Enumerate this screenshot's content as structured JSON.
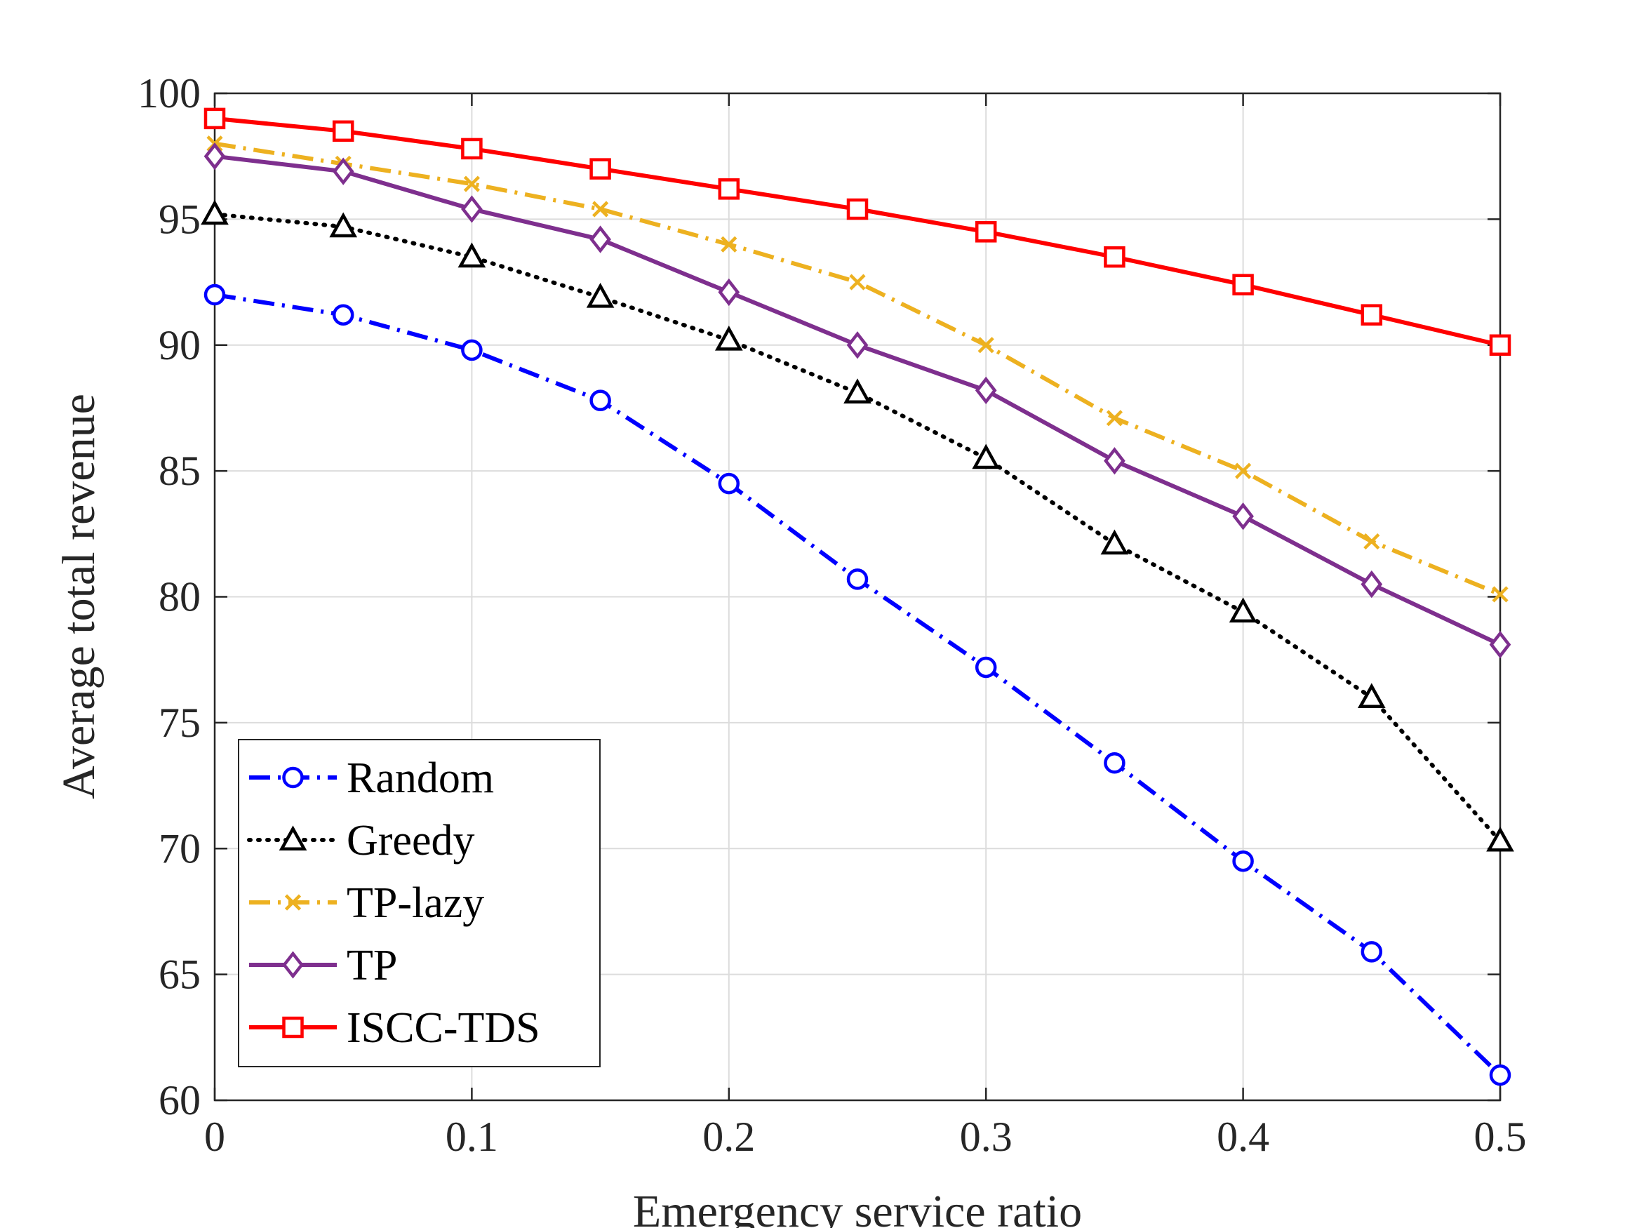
{
  "chart_data": {
    "type": "line",
    "title": "",
    "xlabel": "Emergency service ratio",
    "ylabel": "Average total revenue",
    "xlim": [
      0,
      0.5
    ],
    "ylim": [
      60,
      100
    ],
    "x": [
      0,
      0.05,
      0.1,
      0.15,
      0.2,
      0.25,
      0.3,
      0.35,
      0.4,
      0.45,
      0.5
    ],
    "xticks": [
      0,
      0.1,
      0.2,
      0.3,
      0.4,
      0.5
    ],
    "xtick_labels": [
      "0",
      "0.1",
      "0.2",
      "0.3",
      "0.4",
      "0.5"
    ],
    "yticks": [
      60,
      65,
      70,
      75,
      80,
      85,
      90,
      95,
      100
    ],
    "ytick_labels": [
      "60",
      "65",
      "70",
      "75",
      "80",
      "85",
      "90",
      "95",
      "100"
    ],
    "grid": true,
    "legend_position": "bottom-left",
    "series": [
      {
        "name": "Random",
        "color": "#0000ff",
        "line_style": "dash-dot",
        "marker": "circle",
        "values": [
          92.0,
          91.2,
          89.8,
          87.8,
          84.5,
          80.7,
          77.2,
          73.4,
          69.5,
          65.9,
          61.0
        ]
      },
      {
        "name": "Greedy",
        "color": "#000000",
        "line_style": "dotted",
        "marker": "triangle",
        "values": [
          95.2,
          94.7,
          93.5,
          91.9,
          90.2,
          88.1,
          85.5,
          82.1,
          79.4,
          76.0,
          70.3
        ]
      },
      {
        "name": "TP-lazy",
        "color": "#edb120",
        "line_style": "dash-dot",
        "marker": "x",
        "values": [
          98.0,
          97.2,
          96.4,
          95.4,
          94.0,
          92.5,
          90.0,
          87.1,
          85.0,
          82.2,
          80.1
        ]
      },
      {
        "name": "TP",
        "color": "#7e2f8e",
        "line_style": "solid",
        "marker": "diamond",
        "values": [
          97.5,
          96.9,
          95.4,
          94.2,
          92.1,
          90.0,
          88.2,
          85.4,
          83.2,
          80.5,
          78.1
        ]
      },
      {
        "name": "ISCC-TDS",
        "color": "#ff0000",
        "line_style": "solid",
        "marker": "square",
        "values": [
          99.0,
          98.5,
          97.8,
          97.0,
          96.2,
          95.4,
          94.5,
          93.5,
          92.4,
          91.2,
          90.0
        ]
      }
    ]
  }
}
